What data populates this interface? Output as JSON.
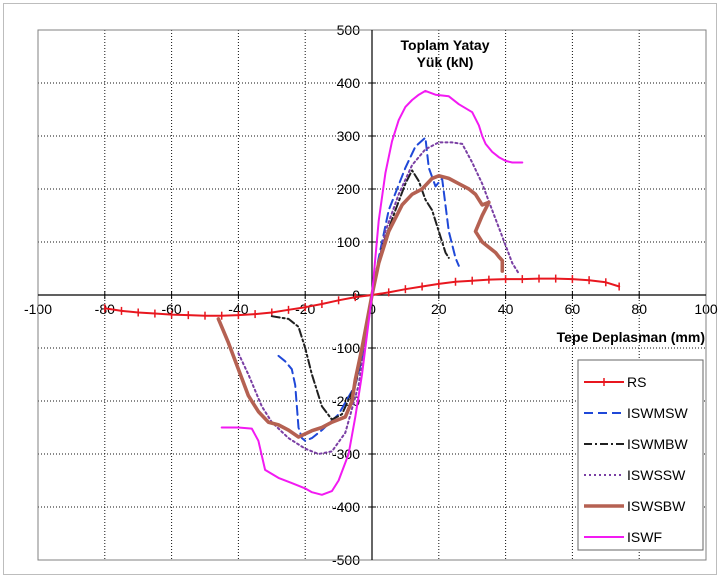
{
  "chart_data": {
    "type": "line",
    "title_lines": [
      "Toplam Yatay",
      "Yük (kN)"
    ],
    "xlabel": "Tepe Deplasman (mm)",
    "ylabel": "",
    "xlim": [
      -100,
      100
    ],
    "ylim": [
      -500,
      500
    ],
    "x_ticks": [
      "-100",
      "-80",
      "-60",
      "-40",
      "-20",
      "0",
      "20",
      "40",
      "60",
      "80",
      "100"
    ],
    "y_ticks": [
      "500",
      "400",
      "300",
      "200",
      "100",
      "0",
      "-100",
      "-200",
      "-300",
      "-400",
      "-500"
    ],
    "grid": true,
    "legend_position": "bottom-right",
    "series": [
      {
        "name": "RS",
        "color": "#e8171f",
        "dash": "solid",
        "markers": true,
        "points": [
          [
            -80,
            -25
          ],
          [
            -75,
            -30
          ],
          [
            -70,
            -33
          ],
          [
            -65,
            -35
          ],
          [
            -60,
            -37
          ],
          [
            -55,
            -38
          ],
          [
            -50,
            -39
          ],
          [
            -45,
            -39
          ],
          [
            -40,
            -38
          ],
          [
            -35,
            -36
          ],
          [
            -30,
            -33
          ],
          [
            -25,
            -28
          ],
          [
            -20,
            -23
          ],
          [
            -15,
            -17
          ],
          [
            -10,
            -10
          ],
          [
            -5,
            -4
          ],
          [
            0,
            0
          ],
          [
            5,
            5
          ],
          [
            10,
            11
          ],
          [
            15,
            16
          ],
          [
            20,
            21
          ],
          [
            25,
            25
          ],
          [
            30,
            27
          ],
          [
            35,
            29
          ],
          [
            40,
            30
          ],
          [
            45,
            30
          ],
          [
            50,
            31
          ],
          [
            55,
            31
          ],
          [
            60,
            30
          ],
          [
            65,
            28
          ],
          [
            70,
            24
          ],
          [
            74,
            16
          ]
        ]
      },
      {
        "name": "ISWMSW",
        "color": "#1f48d8",
        "dash": "9 5",
        "markers": false,
        "points": [
          [
            -28,
            -115
          ],
          [
            -26,
            -125
          ],
          [
            -24,
            -140
          ],
          [
            -23,
            -170
          ],
          [
            -22,
            -250
          ],
          [
            -21,
            -270
          ],
          [
            -20,
            -275
          ],
          [
            -18,
            -270
          ],
          [
            -15,
            -255
          ],
          [
            -10,
            -225
          ],
          [
            -5,
            -170
          ],
          [
            -3,
            -120
          ],
          [
            0,
            0
          ],
          [
            2,
            70
          ],
          [
            5,
            160
          ],
          [
            10,
            240
          ],
          [
            13,
            280
          ],
          [
            16,
            297
          ],
          [
            17,
            240
          ],
          [
            19,
            205
          ],
          [
            21,
            220
          ],
          [
            23,
            120
          ],
          [
            25,
            70
          ],
          [
            26,
            55
          ]
        ]
      },
      {
        "name": "ISWMBW",
        "color": "#202020",
        "dash": "8 3 2 3",
        "markers": false,
        "points": [
          [
            -30,
            -40
          ],
          [
            -25,
            -45
          ],
          [
            -22,
            -60
          ],
          [
            -20,
            -100
          ],
          [
            -18,
            -150
          ],
          [
            -15,
            -210
          ],
          [
            -12,
            -235
          ],
          [
            -9,
            -225
          ],
          [
            -5,
            -170
          ],
          [
            -3,
            -110
          ],
          [
            0,
            0
          ],
          [
            3,
            90
          ],
          [
            7,
            160
          ],
          [
            10,
            210
          ],
          [
            12,
            235
          ],
          [
            14,
            215
          ],
          [
            16,
            180
          ],
          [
            18,
            160
          ],
          [
            20,
            120
          ],
          [
            22,
            80
          ],
          [
            23,
            70
          ]
        ]
      },
      {
        "name": "ISWSSW",
        "color": "#7a3fa4",
        "dash": "2 3",
        "markers": false,
        "points": [
          [
            -40,
            -110
          ],
          [
            -37,
            -150
          ],
          [
            -33,
            -210
          ],
          [
            -30,
            -240
          ],
          [
            -25,
            -270
          ],
          [
            -20,
            -290
          ],
          [
            -16,
            -300
          ],
          [
            -12,
            -295
          ],
          [
            -8,
            -260
          ],
          [
            -4,
            -170
          ],
          [
            0,
            0
          ],
          [
            4,
            120
          ],
          [
            8,
            190
          ],
          [
            12,
            245
          ],
          [
            16,
            275
          ],
          [
            20,
            288
          ],
          [
            24,
            288
          ],
          [
            27,
            285
          ],
          [
            30,
            250
          ],
          [
            33,
            210
          ],
          [
            36,
            160
          ],
          [
            39,
            110
          ],
          [
            42,
            60
          ],
          [
            44,
            40
          ]
        ]
      },
      {
        "name": "ISWSBW",
        "color": "#b56152",
        "dash": "solid",
        "width": 3.6,
        "markers": false,
        "points": [
          [
            -46,
            -45
          ],
          [
            -43,
            -90
          ],
          [
            -40,
            -140
          ],
          [
            -37,
            -190
          ],
          [
            -34,
            -220
          ],
          [
            -31,
            -240
          ],
          [
            -28,
            -245
          ],
          [
            -25,
            -255
          ],
          [
            -22,
            -268
          ],
          [
            -20,
            -262
          ],
          [
            -18,
            -256
          ],
          [
            -15,
            -250
          ],
          [
            -12,
            -240
          ],
          [
            -8,
            -230
          ],
          [
            -6,
            -200
          ],
          [
            -5,
            -160
          ],
          [
            -3,
            -100
          ],
          [
            0,
            0
          ],
          [
            2,
            60
          ],
          [
            5,
            120
          ],
          [
            9,
            170
          ],
          [
            12,
            190
          ],
          [
            15,
            200
          ],
          [
            18,
            220
          ],
          [
            20,
            225
          ],
          [
            23,
            220
          ],
          [
            26,
            210
          ],
          [
            29,
            200
          ],
          [
            31,
            190
          ],
          [
            33,
            170
          ],
          [
            35,
            175
          ],
          [
            33,
            150
          ],
          [
            31,
            120
          ],
          [
            33,
            100
          ],
          [
            35,
            90
          ],
          [
            37,
            80
          ],
          [
            38,
            72
          ],
          [
            39,
            65
          ],
          [
            39,
            45
          ]
        ]
      },
      {
        "name": "ISWF",
        "color": "#f21af2",
        "dash": "solid",
        "markers": false,
        "points": [
          [
            -45,
            -250
          ],
          [
            -40,
            -250
          ],
          [
            -36,
            -252
          ],
          [
            -34,
            -275
          ],
          [
            -32,
            -330
          ],
          [
            -28,
            -345
          ],
          [
            -24,
            -355
          ],
          [
            -20,
            -365
          ],
          [
            -18,
            -372
          ],
          [
            -15,
            -377
          ],
          [
            -12,
            -370
          ],
          [
            -10,
            -350
          ],
          [
            -7,
            -300
          ],
          [
            -5,
            -230
          ],
          [
            -3,
            -150
          ],
          [
            0,
            0
          ],
          [
            2,
            140
          ],
          [
            4,
            230
          ],
          [
            6,
            290
          ],
          [
            8,
            330
          ],
          [
            10,
            355
          ],
          [
            12,
            368
          ],
          [
            14,
            378
          ],
          [
            16,
            385
          ],
          [
            19,
            378
          ],
          [
            23,
            375
          ],
          [
            26,
            360
          ],
          [
            30,
            345
          ],
          [
            32,
            320
          ],
          [
            33,
            300
          ],
          [
            34,
            285
          ],
          [
            36,
            270
          ],
          [
            38,
            260
          ],
          [
            40,
            253
          ],
          [
            42,
            250
          ],
          [
            45,
            250
          ]
        ]
      }
    ]
  }
}
